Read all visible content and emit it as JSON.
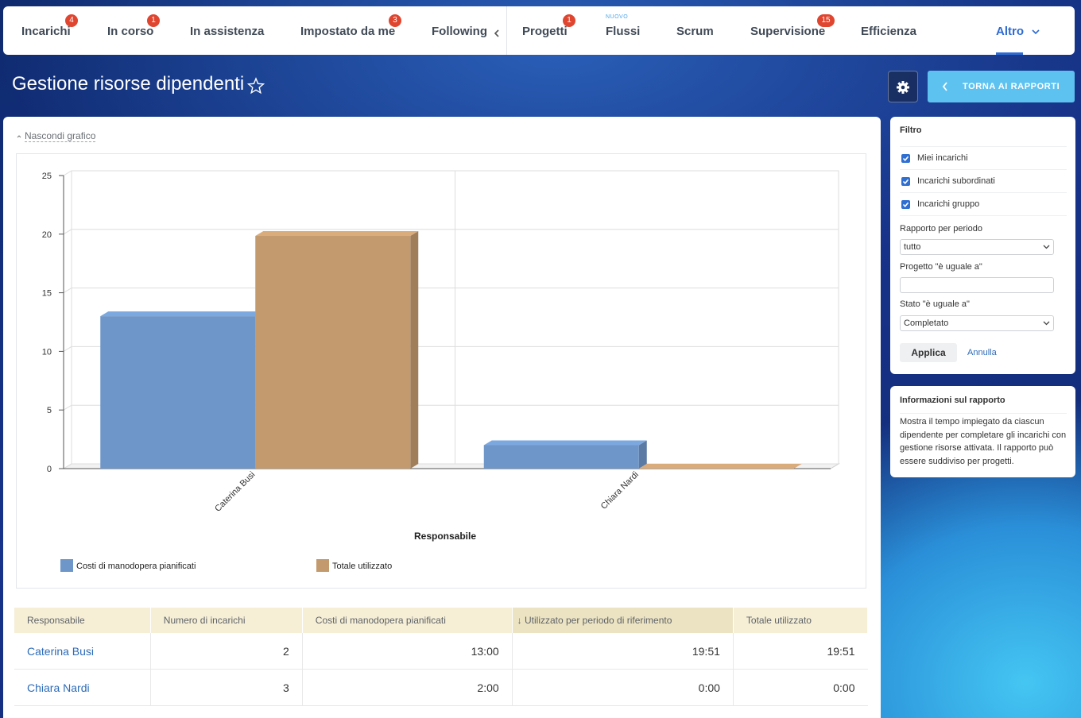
{
  "nav": {
    "items": [
      {
        "label": "Incarichi",
        "badge": 4
      },
      {
        "label": "In corso",
        "badge": 1
      },
      {
        "label": "In assistenza"
      },
      {
        "label": "Impostato da me",
        "badge": 3
      },
      {
        "label": "Following"
      },
      {
        "label": "Progetti",
        "badge": 1
      },
      {
        "label": "Flussi",
        "tag": "NUOVO"
      },
      {
        "label": "Scrum"
      },
      {
        "label": "Supervisione",
        "badge": 15
      },
      {
        "label": "Efficienza"
      },
      {
        "label": "Altro"
      }
    ]
  },
  "header": {
    "title": "Gestione risorse dipendenti",
    "back_button": "TORNA AI RAPPORTI"
  },
  "chart_toggle": "Nascondi grafico",
  "chart_data": {
    "type": "bar",
    "x_label": "Responsabile",
    "categories": [
      "Caterina Busi",
      "Chiara Nardi"
    ],
    "series": [
      {
        "name": "Costi di manodopera pianificati",
        "color": "#6f96c8",
        "values": [
          13,
          2
        ]
      },
      {
        "name": "Totale utilizzato",
        "color": "#c39a6e",
        "values": [
          19.85,
          0
        ]
      }
    ],
    "ylim": [
      0,
      25
    ],
    "yticks": [
      0,
      5,
      10,
      15,
      20,
      25
    ],
    "grid": true
  },
  "table": {
    "columns": [
      "Responsabile",
      "Numero di incarichi",
      "Costi di manodopera pianificati",
      "↓ Utilizzato per periodo di riferimento",
      "Totale utilizzato"
    ],
    "rows": [
      [
        "Caterina Busi",
        2,
        "13:00",
        "19:51",
        "19:51"
      ],
      [
        "Chiara Nardi",
        3,
        "2:00",
        "0:00",
        "0:00"
      ]
    ]
  },
  "filter": {
    "title": "Filtro",
    "checkboxes": [
      {
        "label": "Miei incarichi",
        "checked": true
      },
      {
        "label": "Incarichi subordinati",
        "checked": true
      },
      {
        "label": "Incarichi gruppo",
        "checked": true
      }
    ],
    "period_label": "Rapporto per periodo",
    "period_value": "tutto",
    "project_label": "Progetto \"è uguale a\"",
    "state_label": "Stato \"è uguale a\"",
    "state_value": "Completato",
    "apply": "Applica",
    "cancel": "Annulla"
  },
  "info": {
    "title": "Informazioni sul rapporto",
    "text": "Mostra il tempo impiegato da ciascun dipendente per completare gli incarichi con gestione risorse attivata. Il rapporto può essere suddiviso per progetti."
  }
}
